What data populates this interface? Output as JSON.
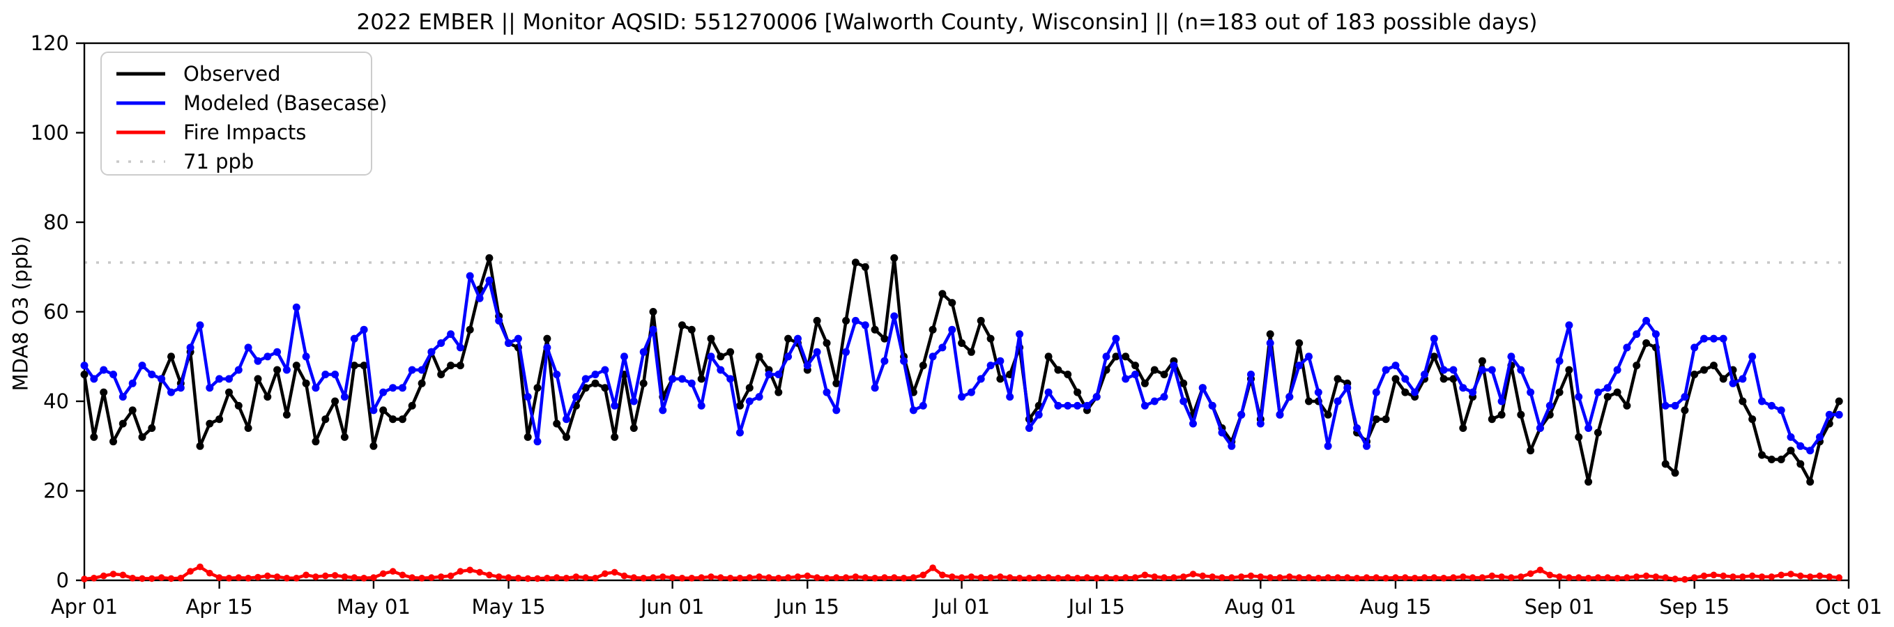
{
  "window": {
    "kind": "matplotlib-style time series figure",
    "background": "#ffffff"
  },
  "chart_data": {
    "type": "line",
    "title": "2022 EMBER || Monitor AQSID: 551270006 [Walworth County, Wisconsin] || (n=183 out of 183 possible days)",
    "ylabel": "MDA8 O3 (ppb)",
    "xlabel": "",
    "ylim": [
      0,
      120
    ],
    "yticks": [
      0,
      20,
      40,
      60,
      80,
      100,
      120
    ],
    "x_start_date": "2022-04-01",
    "x_end_date": "2022-10-01",
    "n_days": 183,
    "xtick_labels": [
      "Apr 01",
      "Apr 15",
      "May 01",
      "May 15",
      "Jun 01",
      "Jun 15",
      "Jul 01",
      "Jul 15",
      "Aug 01",
      "Aug 15",
      "Sep 01",
      "Sep 15",
      "Oct 01"
    ],
    "xtick_day_index": [
      0,
      14,
      30,
      44,
      61,
      75,
      91,
      105,
      122,
      136,
      153,
      167,
      183
    ],
    "grid": false,
    "legend_position": "upper-left",
    "threshold": {
      "label": "71 ppb",
      "value": 71,
      "color": "#c8c8c8",
      "style": "dotted"
    },
    "legend": [
      {
        "name": "Observed",
        "color": "#000000",
        "style": "solid"
      },
      {
        "name": "Modeled (Basecase)",
        "color": "#0000ff",
        "style": "solid"
      },
      {
        "name": "Fire Impacts",
        "color": "#ff0000",
        "style": "solid"
      },
      {
        "name": "71 ppb",
        "color": "#c8c8c8",
        "style": "dotted"
      }
    ],
    "series": [
      {
        "name": "Observed",
        "color": "#000000",
        "marker": "circle",
        "values": [
          46,
          32,
          42,
          31,
          35,
          38,
          32,
          34,
          45,
          50,
          44,
          51,
          30,
          35,
          36,
          42,
          39,
          34,
          45,
          41,
          47,
          37,
          48,
          44,
          31,
          36,
          40,
          32,
          48,
          48,
          30,
          38,
          36,
          36,
          39,
          44,
          51,
          46,
          48,
          48,
          56,
          65,
          72,
          59,
          53,
          52,
          32,
          43,
          54,
          35,
          32,
          39,
          43,
          44,
          43,
          32,
          46,
          34,
          44,
          60,
          41,
          45,
          57,
          56,
          45,
          54,
          50,
          51,
          39,
          43,
          50,
          47,
          42,
          54,
          53,
          47,
          58,
          53,
          44,
          58,
          71,
          70,
          56,
          54,
          72,
          50,
          42,
          48,
          56,
          64,
          62,
          53,
          51,
          58,
          54,
          45,
          46,
          52,
          36,
          39,
          50,
          47,
          46,
          42,
          38,
          41,
          47,
          50,
          50,
          48,
          44,
          47,
          46,
          49,
          44,
          37,
          43,
          39,
          34,
          31,
          37,
          45,
          36,
          55,
          37,
          41,
          53,
          40,
          40,
          37,
          45,
          44,
          33,
          31,
          36,
          36,
          45,
          42,
          41,
          45,
          50,
          45,
          45,
          34,
          41,
          49,
          36,
          37,
          48,
          37,
          29,
          34,
          37,
          42,
          47,
          32,
          22,
          33,
          41,
          42,
          39,
          48,
          53,
          52,
          26,
          24,
          38,
          46,
          47,
          48,
          45,
          47,
          40,
          36,
          28,
          27,
          27,
          29,
          26,
          22,
          31,
          35,
          40
        ]
      },
      {
        "name": "Modeled (Basecase)",
        "color": "#0000ff",
        "marker": "circle",
        "values": [
          48,
          45,
          47,
          46,
          41,
          44,
          48,
          46,
          45,
          42,
          43,
          52,
          57,
          43,
          45,
          45,
          47,
          52,
          49,
          50,
          51,
          47,
          61,
          50,
          43,
          46,
          46,
          41,
          54,
          56,
          38,
          42,
          43,
          43,
          47,
          47,
          51,
          53,
          55,
          52,
          68,
          63,
          67,
          58,
          53,
          54,
          41,
          31,
          52,
          46,
          36,
          41,
          45,
          46,
          47,
          39,
          50,
          40,
          51,
          56,
          38,
          45,
          45,
          44,
          39,
          50,
          47,
          45,
          33,
          40,
          41,
          46,
          46,
          50,
          54,
          48,
          51,
          42,
          38,
          51,
          58,
          57,
          43,
          49,
          59,
          49,
          38,
          39,
          50,
          52,
          56,
          41,
          42,
          45,
          48,
          49,
          41,
          55,
          34,
          37,
          42,
          39,
          39,
          39,
          39,
          41,
          50,
          54,
          45,
          46,
          39,
          40,
          41,
          48,
          40,
          35,
          43,
          39,
          33,
          30,
          37,
          46,
          35,
          53,
          37,
          41,
          48,
          50,
          42,
          30,
          40,
          43,
          34,
          30,
          42,
          47,
          48,
          45,
          42,
          46,
          54,
          47,
          47,
          43,
          42,
          47,
          47,
          40,
          50,
          47,
          42,
          34,
          39,
          49,
          57,
          41,
          34,
          42,
          43,
          47,
          52,
          55,
          58,
          55,
          39,
          39,
          41,
          52,
          54,
          54,
          54,
          44,
          45,
          50,
          40,
          39,
          38,
          32,
          30,
          29,
          32,
          37,
          37
        ]
      },
      {
        "name": "Fire Impacts",
        "color": "#ff0000",
        "marker": "circle",
        "values": [
          0.3,
          0.5,
          1.0,
          1.4,
          1.2,
          0.5,
          0.4,
          0.4,
          0.6,
          0.4,
          0.5,
          2.0,
          3.0,
          1.6,
          0.6,
          0.5,
          0.6,
          0.5,
          0.7,
          1.0,
          0.8,
          0.5,
          0.5,
          1.2,
          0.8,
          1.0,
          1.1,
          0.8,
          0.6,
          0.5,
          0.6,
          1.5,
          2.0,
          1.2,
          0.6,
          0.5,
          0.6,
          0.8,
          1.0,
          2.0,
          2.3,
          1.8,
          1.2,
          0.8,
          0.6,
          0.5,
          0.4,
          0.4,
          0.5,
          0.6,
          0.5,
          0.8,
          0.6,
          0.5,
          1.5,
          1.8,
          1.0,
          0.6,
          0.5,
          0.6,
          0.8,
          0.6,
          0.5,
          0.5,
          0.6,
          0.8,
          0.6,
          0.5,
          0.5,
          0.6,
          0.8,
          0.6,
          0.5,
          0.6,
          0.8,
          1.0,
          0.6,
          0.5,
          0.6,
          0.6,
          0.8,
          0.6,
          0.5,
          0.6,
          0.6,
          0.5,
          0.6,
          1.2,
          2.8,
          1.2,
          0.8,
          0.6,
          0.8,
          0.6,
          0.6,
          0.8,
          0.6,
          0.5,
          0.5,
          0.6,
          0.6,
          0.5,
          0.6,
          0.5,
          0.6,
          0.5,
          0.6,
          0.5,
          0.6,
          0.6,
          1.2,
          0.8,
          0.6,
          0.6,
          0.8,
          1.4,
          1.0,
          0.8,
          0.6,
          0.6,
          0.8,
          1.0,
          0.8,
          0.6,
          0.6,
          0.8,
          0.6,
          0.6,
          0.5,
          0.6,
          0.6,
          0.6,
          0.5,
          0.6,
          0.6,
          0.5,
          0.6,
          0.6,
          0.5,
          0.6,
          0.6,
          0.5,
          0.6,
          0.8,
          0.6,
          0.6,
          1.0,
          0.8,
          0.6,
          0.8,
          1.5,
          2.3,
          1.2,
          0.8,
          0.6,
          0.6,
          0.5,
          0.6,
          0.6,
          0.5,
          0.6,
          0.8,
          1.0,
          0.8,
          0.6,
          0.3,
          0.2,
          0.6,
          1.0,
          1.2,
          1.0,
          0.8,
          0.8,
          1.0,
          0.8,
          0.8,
          1.2,
          1.4,
          1.0,
          0.8,
          1.0,
          0.8,
          0.6
        ]
      }
    ]
  }
}
